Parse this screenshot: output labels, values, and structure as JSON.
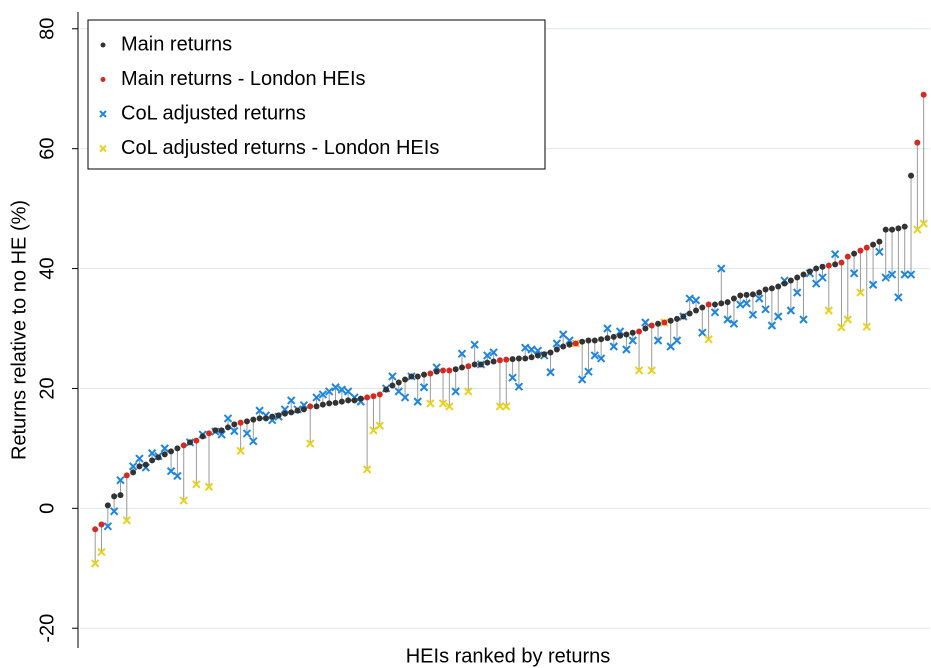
{
  "chart_data": {
    "type": "scatter",
    "xlabel": "HEIs ranked by returns",
    "ylabel": "Returns relative to no HE (%)",
    "xlim": [
      -1.4,
      133
    ],
    "ylim": [
      -23.3,
      82.8
    ],
    "yticks": [
      -20,
      0,
      20,
      40,
      60,
      80
    ],
    "grid": true,
    "legend": "upper left",
    "connector_color": "#9a9a9a",
    "series": [
      {
        "name": "Main returns",
        "color": "#333333",
        "marker": "o",
        "x": [
          3,
          4,
          5,
          7,
          8,
          9,
          10,
          11,
          12,
          13,
          14,
          16,
          18,
          20,
          21,
          22,
          23,
          25,
          26,
          27,
          28,
          29,
          30,
          31,
          32,
          33,
          34,
          36,
          37,
          38,
          39,
          40,
          41,
          42,
          43,
          47,
          48,
          49,
          50,
          51,
          52,
          53,
          55,
          58,
          59,
          61,
          62,
          63,
          64,
          67,
          68,
          69,
          70,
          71,
          72,
          73,
          74,
          75,
          76,
          78,
          79,
          80,
          81,
          82,
          83,
          84,
          85,
          86,
          88,
          90,
          92,
          93,
          94,
          95,
          96,
          97,
          99,
          100,
          101,
          102,
          103,
          104,
          105,
          106,
          107,
          108,
          109,
          110,
          111,
          112,
          113,
          114,
          115,
          116,
          118,
          121,
          124,
          125,
          126,
          127,
          128,
          129,
          130
        ],
        "values": [
          0.5,
          2,
          2.2,
          6,
          7,
          7.3,
          8,
          8.5,
          9,
          9.5,
          10,
          11,
          12,
          13,
          13,
          13.5,
          14,
          14.5,
          14.8,
          15,
          15,
          15.3,
          15.5,
          15.8,
          16,
          16.3,
          16.5,
          17,
          17.3,
          17.5,
          17.6,
          17.8,
          18,
          18,
          18.3,
          19.8,
          20.5,
          21,
          21.5,
          22,
          22,
          22.3,
          22.8,
          23.2,
          23.5,
          24,
          24,
          24.3,
          24.5,
          24.9,
          25,
          25,
          25.2,
          25.5,
          25.7,
          26,
          26.5,
          27,
          27.3,
          27.8,
          28,
          28,
          28.2,
          28.4,
          28.6,
          28.8,
          29,
          29.3,
          30,
          30.8,
          31.3,
          31.6,
          32,
          32.5,
          33,
          33.5,
          34,
          34.2,
          34.4,
          35,
          35.5,
          35.6,
          35.7,
          36,
          36.5,
          36.7,
          37,
          37.5,
          38,
          38.5,
          39,
          39.5,
          40,
          40.3,
          40.7,
          42.5,
          44,
          44.5,
          46.5,
          46.5,
          46.7,
          47,
          55.5
        ]
      },
      {
        "name": "Main returns - London HEIs",
        "color": "#d42a22",
        "marker": "o",
        "x": [
          1,
          2,
          6,
          15,
          17,
          19,
          24,
          35,
          44,
          45,
          46,
          54,
          56,
          57,
          60,
          65,
          66,
          77,
          87,
          89,
          91,
          98,
          117,
          119,
          120,
          122,
          123,
          131,
          132
        ],
        "values": [
          -3.5,
          -2.7,
          5.5,
          10.5,
          11.3,
          12.5,
          14.3,
          17,
          18.5,
          18.7,
          19,
          22.5,
          23,
          23,
          23.7,
          24.7,
          24.8,
          27.5,
          29.5,
          30.5,
          31,
          34,
          40.5,
          41,
          42,
          43,
          43.5,
          61,
          69
        ]
      },
      {
        "name": "CoL adjusted returns",
        "color": "#1f86e0",
        "marker": "x",
        "x": [
          3,
          4,
          5,
          7,
          8,
          9,
          10,
          11,
          12,
          13,
          14,
          16,
          18,
          20,
          21,
          22,
          23,
          25,
          26,
          27,
          28,
          29,
          30,
          31,
          32,
          33,
          34,
          36,
          37,
          38,
          39,
          40,
          41,
          42,
          43,
          47,
          48,
          49,
          50,
          51,
          52,
          53,
          55,
          58,
          59,
          61,
          62,
          63,
          64,
          67,
          68,
          69,
          70,
          71,
          72,
          73,
          74,
          75,
          76,
          78,
          79,
          80,
          81,
          82,
          83,
          84,
          85,
          86,
          88,
          90,
          92,
          93,
          94,
          95,
          96,
          97,
          99,
          100,
          101,
          102,
          103,
          104,
          105,
          106,
          107,
          108,
          109,
          110,
          111,
          112,
          113,
          114,
          115,
          116,
          118,
          121,
          124,
          125,
          126,
          127,
          128,
          129,
          130
        ],
        "values": [
          -3,
          -0.5,
          4.7,
          7,
          8.3,
          6.8,
          9.2,
          8.7,
          10,
          6.2,
          5.4,
          11,
          12.3,
          12.8,
          12.3,
          15,
          12.9,
          12.5,
          11.2,
          16.3,
          15.5,
          14.7,
          15.3,
          16.5,
          18,
          16.5,
          17.2,
          18.5,
          19,
          19.5,
          20.2,
          19.8,
          19.5,
          18.5,
          17.8,
          20,
          22,
          19.5,
          18.5,
          22,
          17.8,
          20.2,
          23.5,
          19.5,
          25.8,
          27.3,
          24,
          25.5,
          26,
          21.8,
          20.3,
          26.8,
          26.5,
          26.3,
          25.5,
          22.7,
          27.5,
          29,
          28,
          21.5,
          22.8,
          25.5,
          25,
          30,
          27,
          29.5,
          26.5,
          28,
          31,
          28,
          27,
          28,
          32,
          35,
          34.7,
          29.3,
          32.7,
          40,
          31.5,
          30.8,
          34,
          34.2,
          32.3,
          35,
          33.2,
          30.5,
          32,
          38,
          33,
          36,
          31.5,
          39.2,
          37.5,
          38.5,
          42.4,
          39.2,
          37.3,
          42.8,
          38.5,
          39,
          35.2,
          39,
          39
        ]
      },
      {
        "name": "CoL adjusted returns - London HEIs",
        "color": "#e8d21e",
        "marker": "x",
        "x": [
          1,
          2,
          6,
          15,
          17,
          19,
          24,
          35,
          44,
          45,
          46,
          54,
          56,
          57,
          60,
          65,
          66,
          77,
          87,
          89,
          91,
          98,
          117,
          119,
          120,
          122,
          123,
          131,
          132
        ],
        "values": [
          -9.2,
          -7.3,
          -2,
          1.3,
          4,
          3.6,
          9.6,
          10.8,
          6.5,
          13,
          13.8,
          17.5,
          17.5,
          17,
          19.5,
          17,
          17,
          27.5,
          23,
          23,
          31,
          28.2,
          33,
          30.2,
          31.5,
          36,
          30.3,
          46.5,
          47.5
        ]
      }
    ]
  }
}
